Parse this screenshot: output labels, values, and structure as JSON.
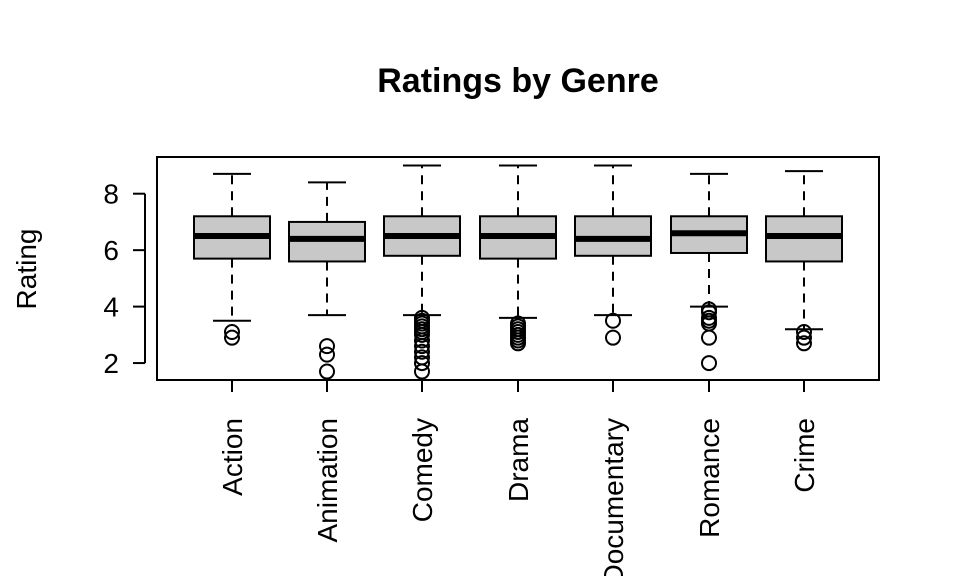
{
  "chart_data": {
    "type": "boxplot",
    "title": "Ratings by Genre",
    "xlabel": "",
    "ylabel": "Rating",
    "ylim": [
      1.4,
      9.3
    ],
    "yticks": [
      2,
      4,
      6,
      8
    ],
    "categories": [
      "Action",
      "Animation",
      "Comedy",
      "Drama",
      "Documentary",
      "Romance",
      "Crime"
    ],
    "boxes": [
      {
        "name": "Action",
        "whisker_low": 3.5,
        "q1": 5.7,
        "median": 6.5,
        "q3": 7.2,
        "whisker_high": 8.7,
        "outliers": [
          3.1,
          2.9
        ]
      },
      {
        "name": "Animation",
        "whisker_low": 3.7,
        "q1": 5.6,
        "median": 6.4,
        "q3": 7.0,
        "whisker_high": 8.4,
        "outliers": [
          2.6,
          2.3,
          1.7
        ]
      },
      {
        "name": "Comedy",
        "whisker_low": 3.7,
        "q1": 5.8,
        "median": 6.5,
        "q3": 7.2,
        "whisker_high": 9.0,
        "outliers": [
          3.6,
          3.5,
          3.4,
          3.3,
          3.2,
          3.1,
          3.0,
          2.8,
          2.6,
          2.4,
          2.2,
          2.0,
          1.7
        ]
      },
      {
        "name": "Drama",
        "whisker_low": 3.6,
        "q1": 5.7,
        "median": 6.5,
        "q3": 7.2,
        "whisker_high": 9.0,
        "outliers": [
          3.4,
          3.3,
          3.2,
          3.1,
          3.0,
          2.9,
          2.8,
          2.7
        ]
      },
      {
        "name": "Documentary",
        "whisker_low": 3.7,
        "q1": 5.8,
        "median": 6.4,
        "q3": 7.2,
        "whisker_high": 9.0,
        "outliers": [
          3.5,
          2.9
        ]
      },
      {
        "name": "Romance",
        "whisker_low": 4.0,
        "q1": 5.9,
        "median": 6.6,
        "q3": 7.2,
        "whisker_high": 8.7,
        "outliers": [
          3.9,
          3.8,
          3.6,
          3.5,
          3.4,
          2.9,
          2.0
        ]
      },
      {
        "name": "Crime",
        "whisker_low": 3.2,
        "q1": 5.6,
        "median": 6.5,
        "q3": 7.2,
        "whisker_high": 8.8,
        "outliers": [
          3.1,
          2.9,
          2.7
        ]
      }
    ],
    "box_fill": "#c8c8c8",
    "grid": false,
    "legend": "none"
  }
}
